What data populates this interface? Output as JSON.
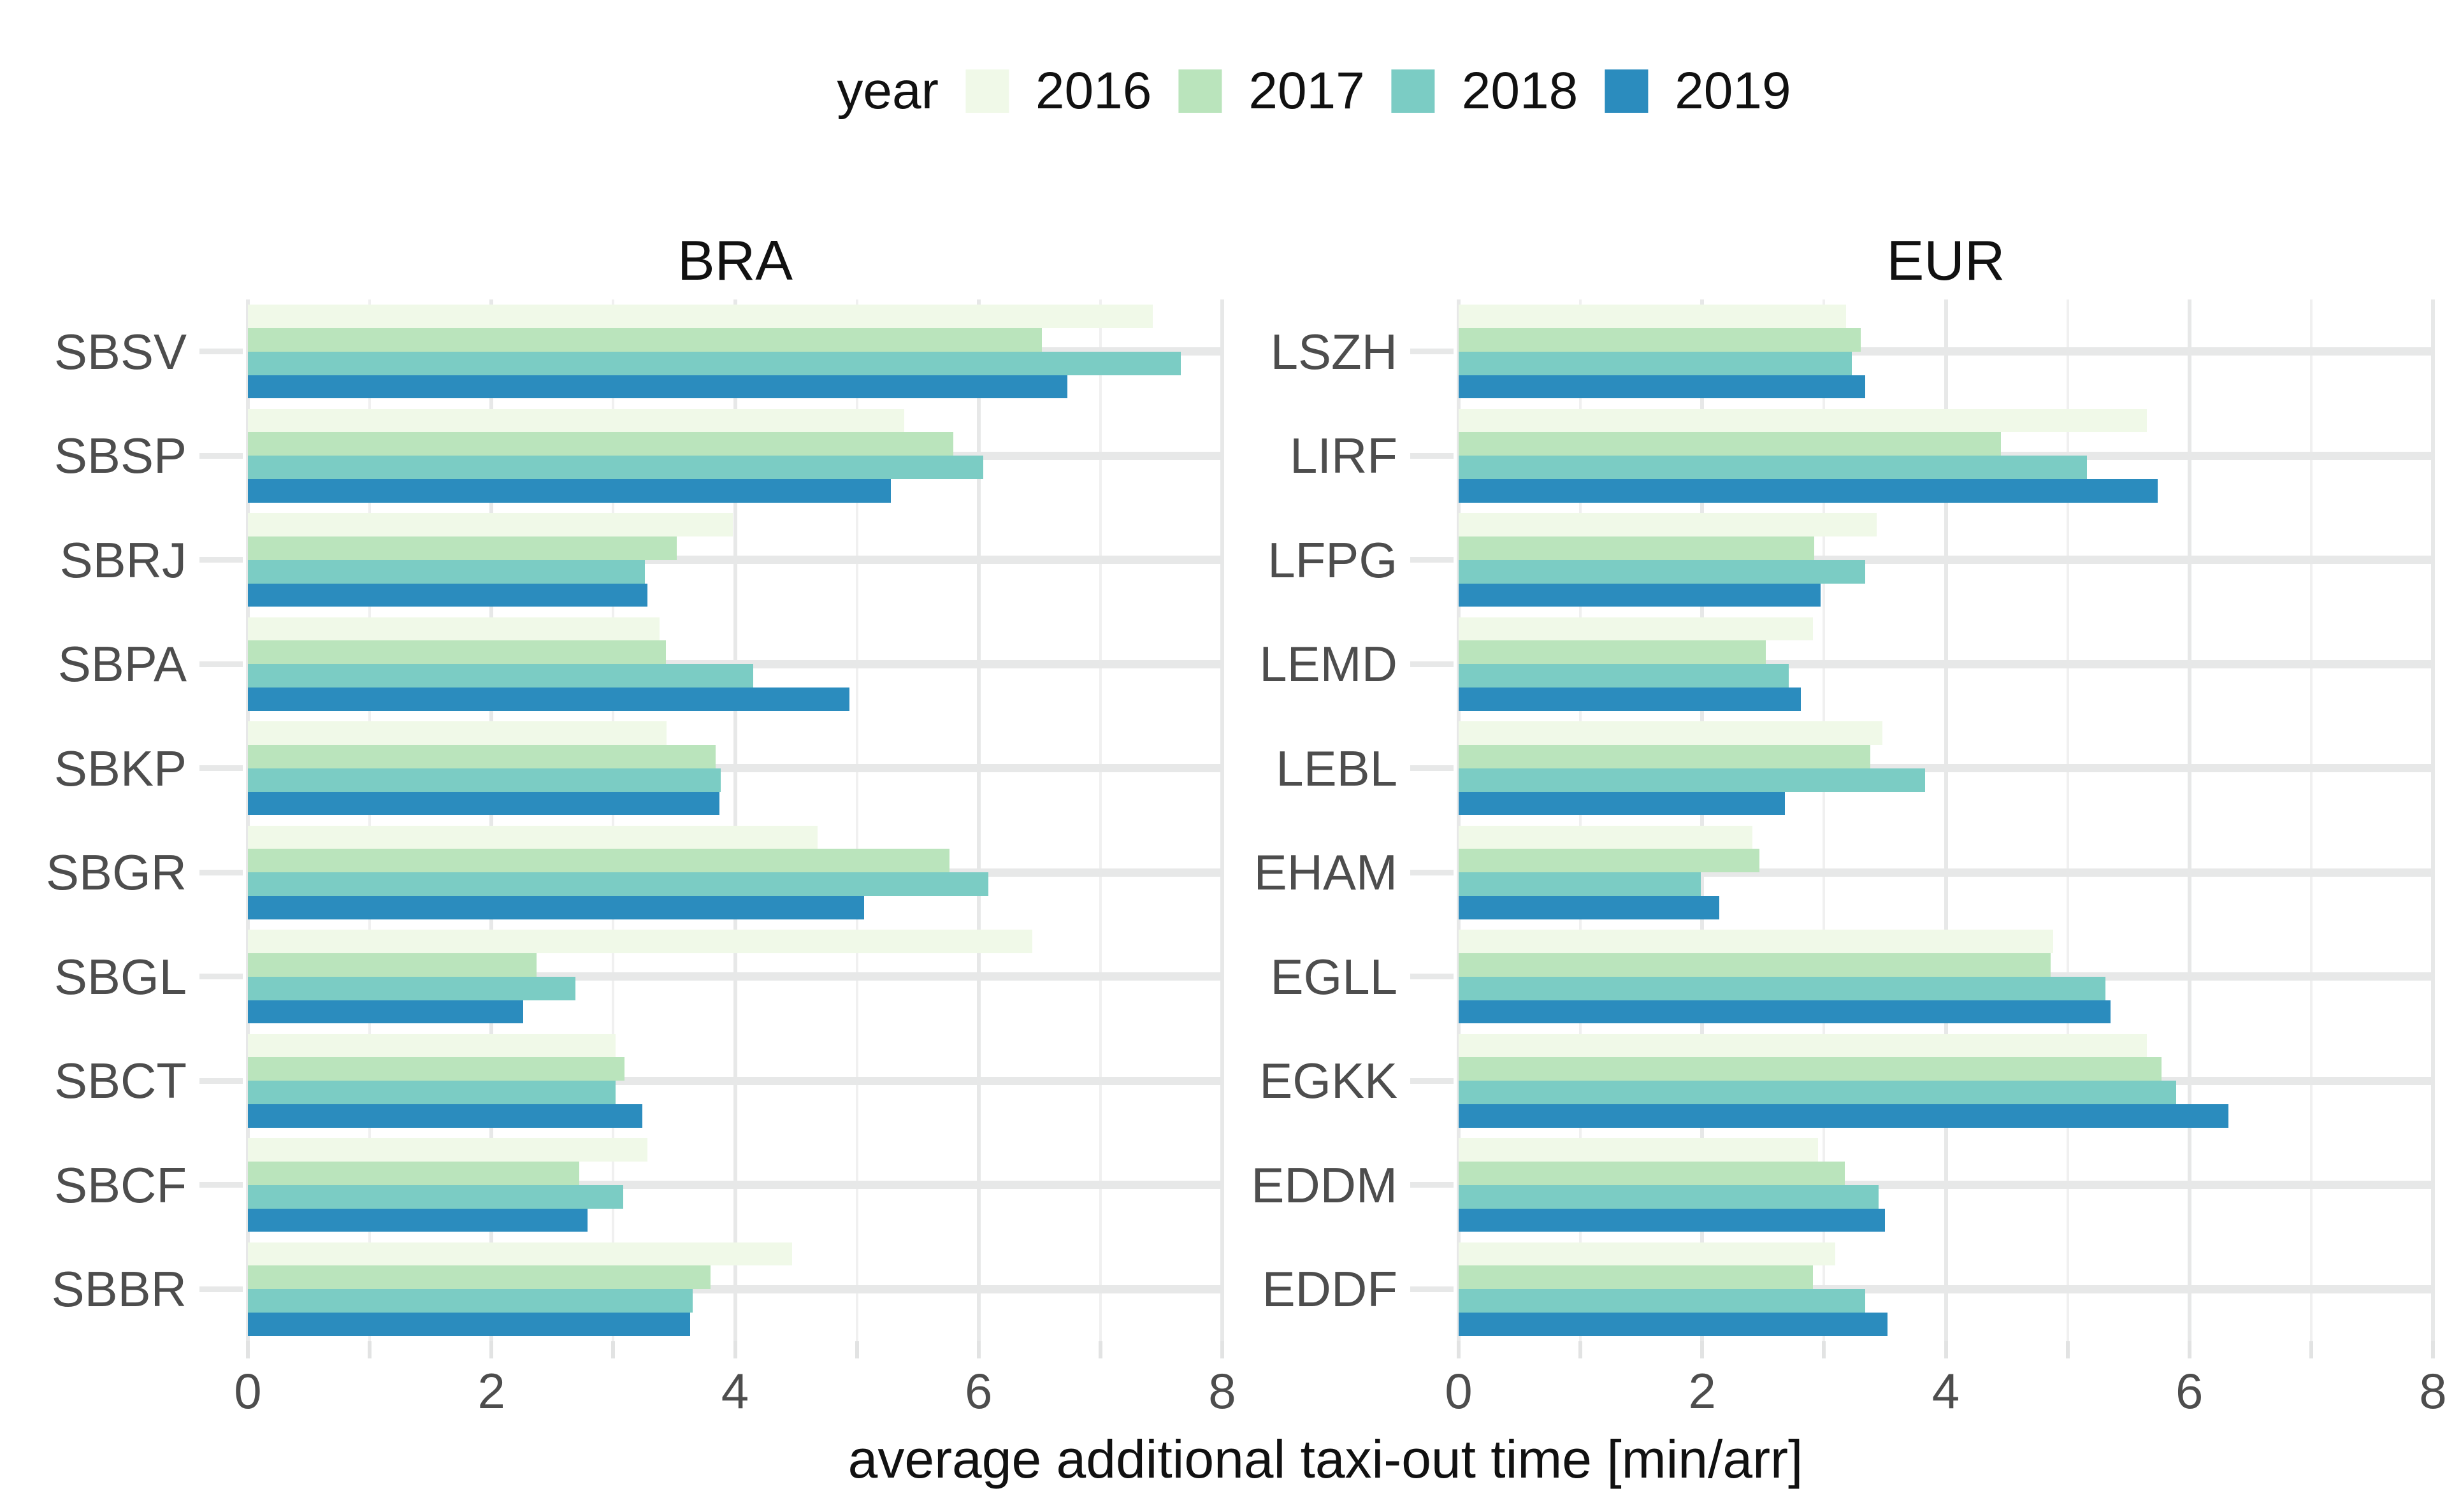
{
  "legend": {
    "title": "year",
    "items": [
      {
        "label": "2016",
        "color": "#f0f9e8"
      },
      {
        "label": "2017",
        "color": "#bae4bc"
      },
      {
        "label": "2018",
        "color": "#7bccc4"
      },
      {
        "label": "2019",
        "color": "#2b8cbe"
      }
    ]
  },
  "axis": {
    "x_title": "average additional taxi-out time [min/arr]",
    "x_ticks": [
      0,
      2,
      4,
      6,
      8
    ],
    "x_minor": [
      1,
      3,
      5,
      7
    ],
    "x_tick_labels": [
      "0",
      "2",
      "4",
      "6",
      "8"
    ],
    "xlim": [
      0,
      8
    ]
  },
  "colors": {
    "grid_major": "#e7e8e8",
    "grid_minor": "#f0f0f0",
    "axis_text": "#4d4d4d",
    "title_text": "#111111",
    "background": "#ffffff"
  },
  "chart_data": {
    "type": "bar",
    "orientation": "horizontal",
    "title": "",
    "xlabel": "average additional taxi-out time [min/arr]",
    "ylabel": "",
    "xlim": [
      0,
      8
    ],
    "grid": true,
    "legend_position": "top",
    "facets": [
      {
        "title": "BRA",
        "categories": [
          "SBSV",
          "SBSP",
          "SBRJ",
          "SBPA",
          "SBKP",
          "SBGR",
          "SBGL",
          "SBCT",
          "SBCF",
          "SBBR"
        ],
        "series": [
          {
            "name": "2016",
            "color": "#f0f9e8",
            "values": [
              7.43,
              5.39,
              3.98,
              3.38,
              3.44,
              4.68,
              6.44,
              3.02,
              3.28,
              4.47
            ]
          },
          {
            "name": "2017",
            "color": "#bae4bc",
            "values": [
              6.52,
              5.79,
              3.52,
              3.43,
              3.84,
              5.76,
              2.37,
              3.09,
              2.72,
              3.8
            ]
          },
          {
            "name": "2018",
            "color": "#7bccc4",
            "values": [
              7.66,
              6.04,
              3.26,
              4.15,
              3.88,
              6.08,
              2.69,
              3.02,
              3.08,
              3.65
            ]
          },
          {
            "name": "2019",
            "color": "#2b8cbe",
            "values": [
              6.73,
              5.28,
              3.28,
              4.94,
              3.87,
              5.06,
              2.26,
              3.24,
              2.79,
              3.63
            ]
          }
        ]
      },
      {
        "title": "EUR",
        "categories": [
          "LSZH",
          "LIRF",
          "LFPG",
          "LEMD",
          "LEBL",
          "EHAM",
          "EGLL",
          "EGKK",
          "EDDM",
          "EDDF"
        ],
        "series": [
          {
            "name": "2016",
            "color": "#f0f9e8",
            "values": [
              3.18,
              5.65,
              3.43,
              2.91,
              3.48,
              2.41,
              4.88,
              5.65,
              2.95,
              3.09
            ]
          },
          {
            "name": "2017",
            "color": "#bae4bc",
            "values": [
              3.3,
              4.45,
              2.92,
              2.52,
              3.38,
              2.47,
              4.86,
              5.77,
              3.17,
              2.91
            ]
          },
          {
            "name": "2018",
            "color": "#7bccc4",
            "values": [
              3.23,
              5.16,
              3.34,
              2.71,
              3.83,
              1.99,
              5.31,
              5.89,
              3.45,
              3.34
            ]
          },
          {
            "name": "2019",
            "color": "#2b8cbe",
            "values": [
              3.34,
              5.74,
              2.97,
              2.81,
              2.68,
              2.14,
              5.35,
              6.32,
              3.5,
              3.52
            ]
          }
        ]
      }
    ]
  }
}
